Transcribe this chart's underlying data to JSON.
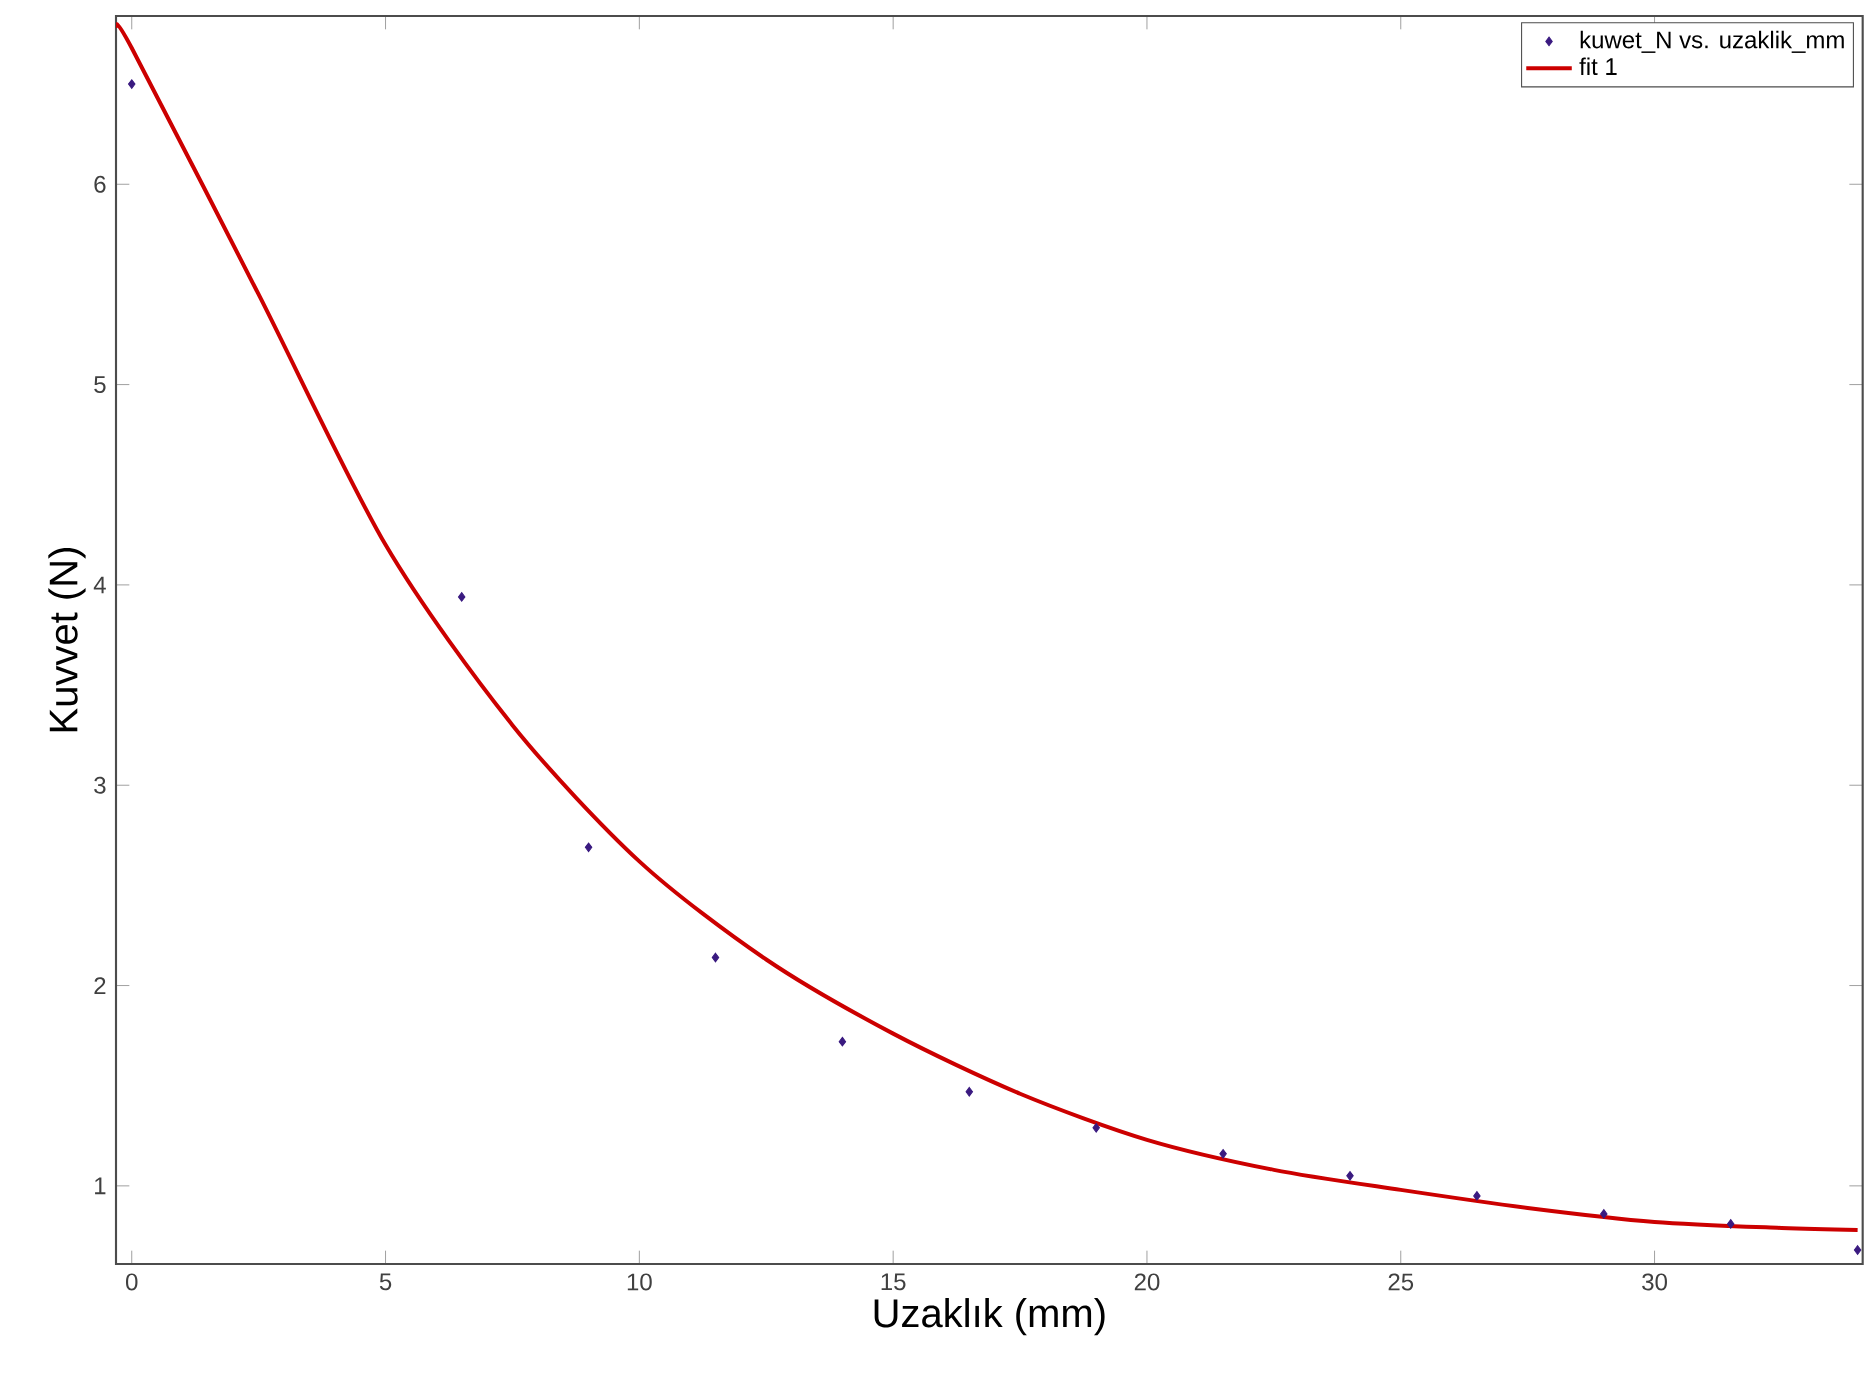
{
  "chart_data": {
    "type": "scatter",
    "xlabel": "Uzaklık (mm)",
    "ylabel": "Kuvvet (N)",
    "xlim": [
      -0.31,
      34.1
    ],
    "ylim": [
      0.61,
      6.84
    ],
    "xticks": [
      0,
      5,
      10,
      15,
      20,
      25,
      30
    ],
    "yticks": [
      1,
      2,
      3,
      4,
      5,
      6
    ],
    "grid": false,
    "legend": "top right",
    "series": [
      {
        "name": "kuwet_N vs. uzaklik_mm",
        "marker": "diamond",
        "color": "#3a1a80",
        "x": [
          0,
          6.5,
          9,
          11.5,
          14,
          16.5,
          19,
          21.5,
          24,
          26.5,
          29,
          31.5,
          34
        ],
        "values": [
          6.5,
          3.94,
          2.69,
          2.14,
          1.72,
          1.47,
          1.29,
          1.16,
          1.05,
          0.95,
          0.86,
          0.81,
          0.68
        ]
      },
      {
        "name": "fit 1",
        "type": "line",
        "line_style": "solid",
        "color": "#cc0000",
        "x": [
          -0.3,
          0,
          2.5,
          5,
          7.5,
          10,
          12.5,
          15,
          17.5,
          20,
          22.5,
          25,
          27.5,
          30,
          32.5,
          34
        ],
        "values": [
          6.78,
          6.68,
          5.45,
          4.2,
          3.3,
          2.62,
          2.13,
          1.76,
          1.46,
          1.23,
          1.08,
          0.98,
          0.89,
          0.82,
          0.79,
          0.78
        ]
      }
    ]
  }
}
